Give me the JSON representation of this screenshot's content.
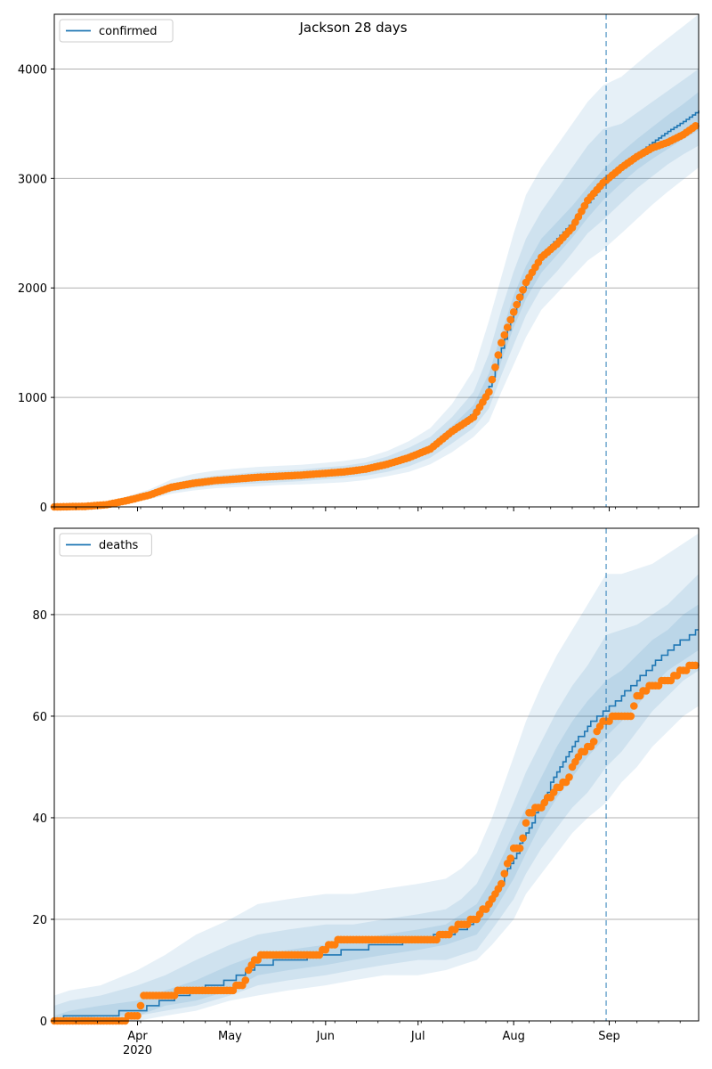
{
  "figure": {
    "title": "Jackson 28 days"
  },
  "colors": {
    "model": "#1f77b4",
    "observed": "#ff7f0e",
    "band": "#1f77b4",
    "grid": "#b0b0b0",
    "forecast_line": "#1f77b4"
  },
  "chart_data": [
    {
      "type": "line",
      "panel": "top",
      "title": "Jackson 28 days",
      "legend": {
        "label": "confirmed",
        "placement": "top-left"
      },
      "grid": "horizontal",
      "x_range": [
        "2020-03-05",
        "2020-09-30"
      ],
      "ylim": [
        0,
        4500
      ],
      "y_ticks": [
        0,
        1000,
        2000,
        3000,
        4000
      ],
      "x_tick_labels": [
        {
          "date": "2020-04-01",
          "label": "Apr",
          "year": "2020"
        },
        {
          "date": "2020-05-01",
          "label": "May"
        },
        {
          "date": "2020-06-01",
          "label": "Jun"
        },
        {
          "date": "2020-07-01",
          "label": "Jul"
        },
        {
          "date": "2020-08-01",
          "label": "Aug"
        },
        {
          "date": "2020-09-01",
          "label": "Sep"
        }
      ],
      "forecast_start": "2020-08-31",
      "observed": {
        "dates": [
          "2020-03-05",
          "2020-03-15",
          "2020-03-22",
          "2020-03-29",
          "2020-04-05",
          "2020-04-12",
          "2020-04-19",
          "2020-04-26",
          "2020-05-03",
          "2020-05-10",
          "2020-05-17",
          "2020-05-24",
          "2020-05-31",
          "2020-06-07",
          "2020-06-14",
          "2020-06-21",
          "2020-06-28",
          "2020-07-05",
          "2020-07-12",
          "2020-07-19",
          "2020-07-24",
          "2020-07-28",
          "2020-08-01",
          "2020-08-05",
          "2020-08-10",
          "2020-08-15",
          "2020-08-20",
          "2020-08-25",
          "2020-08-30",
          "2020-09-05",
          "2020-09-10",
          "2020-09-15",
          "2020-09-20",
          "2020-09-25",
          "2020-09-29"
        ],
        "values": [
          0,
          5,
          20,
          60,
          110,
          180,
          215,
          240,
          255,
          270,
          280,
          290,
          305,
          320,
          345,
          390,
          450,
          530,
          690,
          820,
          1050,
          1500,
          1780,
          2050,
          2280,
          2400,
          2550,
          2800,
          2960,
          3100,
          3200,
          3280,
          3330,
          3400,
          3480
        ]
      },
      "model": {
        "dates": [
          "2020-03-05",
          "2020-03-15",
          "2020-03-22",
          "2020-03-29",
          "2020-04-05",
          "2020-04-12",
          "2020-04-19",
          "2020-04-26",
          "2020-05-03",
          "2020-05-10",
          "2020-05-17",
          "2020-05-24",
          "2020-05-31",
          "2020-06-07",
          "2020-06-14",
          "2020-06-21",
          "2020-06-28",
          "2020-07-05",
          "2020-07-12",
          "2020-07-19",
          "2020-07-24",
          "2020-07-28",
          "2020-08-01",
          "2020-08-05",
          "2020-08-10",
          "2020-08-15",
          "2020-08-20",
          "2020-08-25",
          "2020-08-30",
          "2020-09-05",
          "2020-09-10",
          "2020-09-15",
          "2020-09-20",
          "2020-09-25",
          "2020-09-30"
        ],
        "values": [
          0,
          5,
          20,
          60,
          110,
          180,
          215,
          240,
          255,
          270,
          280,
          290,
          305,
          320,
          345,
          390,
          450,
          540,
          700,
          860,
          1100,
          1450,
          1780,
          2050,
          2300,
          2450,
          2600,
          2780,
          2950,
          3100,
          3220,
          3330,
          3430,
          3520,
          3620
        ],
        "bands": [
          {
            "lower": [
              0,
              0,
              5,
              30,
              70,
              120,
              150,
              170,
              180,
              190,
              200,
              205,
              215,
              225,
              245,
              280,
              320,
              390,
              500,
              640,
              780,
              1050,
              1300,
              1550,
              1800,
              1950,
              2100,
              2250,
              2350,
              2500,
              2630,
              2760,
              2880,
              2990,
              3100
            ],
            "upper": [
              20,
              30,
              50,
              100,
              160,
              250,
              300,
              330,
              350,
              365,
              375,
              385,
              400,
              420,
              450,
              510,
              600,
              720,
              940,
              1250,
              1700,
              2100,
              2500,
              2850,
              3100,
              3300,
              3500,
              3700,
              3850,
              3930,
              4050,
              4170,
              4280,
              4390,
              4500
            ]
          },
          {
            "lower": [
              0,
              2,
              10,
              40,
              85,
              140,
              170,
              195,
              205,
              215,
              225,
              235,
              250,
              265,
              285,
              320,
              370,
              450,
              580,
              720,
              900,
              1200,
              1480,
              1750,
              2000,
              2150,
              2320,
              2500,
              2620,
              2780,
              2910,
              3020,
              3130,
              3220,
              3300
            ],
            "upper": [
              10,
              15,
              35,
              80,
              135,
              215,
              255,
              285,
              300,
              320,
              330,
              340,
              360,
              375,
              405,
              460,
              540,
              640,
              820,
              1050,
              1400,
              1800,
              2150,
              2450,
              2700,
              2900,
              3100,
              3300,
              3450,
              3500,
              3600,
              3700,
              3800,
              3900,
              4000
            ]
          },
          {
            "lower": [
              0,
              4,
              15,
              50,
              100,
              165,
              200,
              225,
              240,
              255,
              265,
              275,
              290,
              305,
              330,
              370,
              430,
              510,
              650,
              800,
              1000,
              1330,
              1640,
              1900,
              2140,
              2300,
              2460,
              2640,
              2800,
              2960,
              3080,
              3180,
              3270,
              3360,
              3440
            ],
            "upper": [
              2,
              8,
              25,
              70,
              120,
              195,
              230,
              255,
              270,
              285,
              295,
              305,
              320,
              335,
              360,
              410,
              480,
              570,
              740,
              930,
              1220,
              1580,
              1930,
              2200,
              2450,
              2600,
              2750,
              2920,
              3080,
              3240,
              3360,
              3470,
              3580,
              3680,
              3790
            ]
          }
        ]
      }
    },
    {
      "type": "line",
      "panel": "bottom",
      "legend": {
        "label": "deaths",
        "placement": "top-left"
      },
      "grid": "horizontal",
      "x_range": [
        "2020-03-05",
        "2020-09-30"
      ],
      "ylim": [
        0,
        97
      ],
      "y_ticks": [
        0,
        20,
        40,
        60,
        80
      ],
      "x_tick_labels": [
        {
          "date": "2020-04-01",
          "label": "Apr",
          "year": "2020"
        },
        {
          "date": "2020-05-01",
          "label": "May"
        },
        {
          "date": "2020-06-01",
          "label": "Jun"
        },
        {
          "date": "2020-07-01",
          "label": "Jul"
        },
        {
          "date": "2020-08-01",
          "label": "Aug"
        },
        {
          "date": "2020-09-01",
          "label": "Sep"
        }
      ],
      "forecast_start": "2020-08-31",
      "observed": {
        "dates": [
          "2020-03-05",
          "2020-03-15",
          "2020-03-25",
          "2020-04-01",
          "2020-04-03",
          "2020-04-10",
          "2020-04-17",
          "2020-04-25",
          "2020-05-01",
          "2020-05-05",
          "2020-05-08",
          "2020-05-12",
          "2020-05-20",
          "2020-05-30",
          "2020-06-02",
          "2020-06-07",
          "2020-06-15",
          "2020-06-25",
          "2020-07-05",
          "2020-07-10",
          "2020-07-15",
          "2020-07-20",
          "2020-07-24",
          "2020-07-28",
          "2020-08-01",
          "2020-08-03",
          "2020-08-06",
          "2020-08-10",
          "2020-08-14",
          "2020-08-18",
          "2020-08-22",
          "2020-08-26",
          "2020-08-30",
          "2020-09-05",
          "2020-09-08",
          "2020-09-10",
          "2020-09-15",
          "2020-09-20",
          "2020-09-25",
          "2020-09-29"
        ],
        "values": [
          0,
          0,
          0,
          1,
          5,
          5,
          6,
          6,
          6,
          7,
          11,
          13,
          13,
          13,
          15,
          16,
          16,
          16,
          16,
          17,
          19,
          20,
          23,
          27,
          34,
          34,
          41,
          42,
          45,
          47,
          52,
          54,
          59,
          60,
          60,
          64,
          66,
          67,
          69,
          70
        ]
      },
      "model": {
        "dates": [
          "2020-03-05",
          "2020-03-10",
          "2020-03-20",
          "2020-04-01",
          "2020-04-10",
          "2020-04-20",
          "2020-05-01",
          "2020-05-10",
          "2020-05-20",
          "2020-06-01",
          "2020-06-10",
          "2020-06-20",
          "2020-07-01",
          "2020-07-10",
          "2020-07-15",
          "2020-07-20",
          "2020-07-25",
          "2020-08-01",
          "2020-08-05",
          "2020-08-10",
          "2020-08-15",
          "2020-08-20",
          "2020-08-25",
          "2020-08-31",
          "2020-09-05",
          "2020-09-10",
          "2020-09-15",
          "2020-09-20",
          "2020-09-25",
          "2020-09-30"
        ],
        "values": [
          0,
          1,
          1,
          2,
          4,
          6,
          8,
          11,
          12,
          13,
          14,
          15,
          16,
          17,
          18,
          20,
          24,
          32,
          37,
          43,
          49,
          54,
          58,
          61,
          64,
          67,
          70,
          73,
          75,
          77
        ],
        "bands": [
          {
            "lower": [
              0,
              0,
              0,
              0,
              1,
              2,
              4,
              5,
              6,
              7,
              8,
              9,
              9,
              10,
              11,
              12,
              15,
              20,
              25,
              29,
              33,
              37,
              40,
              43,
              47,
              50,
              54,
              57,
              60,
              62
            ],
            "upper": [
              5,
              6,
              7,
              10,
              13,
              17,
              20,
              23,
              24,
              25,
              25,
              26,
              27,
              28,
              30,
              33,
              40,
              52,
              59,
              66,
              72,
              77,
              82,
              88,
              88,
              89,
              90,
              92,
              94,
              96
            ]
          },
          {
            "lower": [
              0,
              0,
              0,
              1,
              2,
              3,
              5,
              7,
              8,
              9,
              10,
              11,
              12,
              12,
              13,
              14,
              18,
              24,
              29,
              34,
              38,
              42,
              45,
              50,
              53,
              57,
              61,
              64,
              67,
              69
            ],
            "upper": [
              3,
              4,
              5,
              7,
              9,
              12,
              15,
              17,
              18,
              19,
              19,
              20,
              21,
              22,
              24,
              27,
              33,
              43,
              49,
              55,
              61,
              66,
              70,
              76,
              77,
              78,
              80,
              82,
              85,
              88
            ]
          },
          {
            "lower": [
              0,
              0,
              1,
              1,
              3,
              4,
              6,
              9,
              10,
              11,
              12,
              13,
              14,
              15,
              16,
              17,
              21,
              28,
              33,
              39,
              44,
              48,
              52,
              56,
              59,
              62,
              66,
              69,
              71,
              73
            ],
            "upper": [
              1,
              2,
              3,
              4,
              6,
              8,
              11,
              13,
              14,
              15,
              16,
              17,
              18,
              19,
              21,
              23,
              28,
              37,
              42,
              48,
              54,
              59,
              63,
              67,
              69,
              72,
              75,
              77,
              80,
              82
            ]
          }
        ]
      }
    }
  ]
}
